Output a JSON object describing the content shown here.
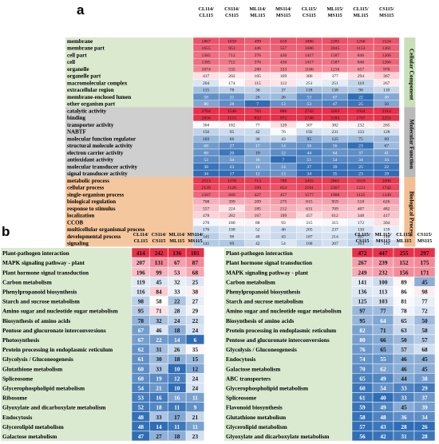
{
  "chart_data": [
    {
      "panel": "a",
      "type": "heatmap",
      "columns": [
        "CL114/ CL115",
        "CS114/ CS115",
        "ML114/ ML115",
        "MS114/ MS115",
        "CL115/ CS115",
        "ML115/ MS115",
        "CL115/ ML115",
        "CS115/ MS115"
      ],
      "groups": [
        {
          "name": "Cellular Component",
          "rows": [
            {
              "label": "membrane",
              "values": [
                1867,
                1059,
                499,
                618,
                1886,
                2285,
                1266,
                1524
              ]
            },
            {
              "label": "membrane part",
              "values": [
                1655,
                953,
                446,
                557,
                1686,
                2045,
                1153,
                1361
              ]
            },
            {
              "label": "cell part",
              "values": [
                1385,
                712,
                376,
                430,
                1417,
                1587,
                846,
                1266
              ]
            },
            {
              "label": "cell",
              "values": [
                1385,
                712,
                376,
                430,
                1417,
                1587,
                846,
                1266
              ]
            },
            {
              "label": "organelle",
              "values": [
                1074,
                535,
                280,
                333,
                1106,
                1216,
                657,
                970
              ]
            },
            {
              "label": "organelle part",
              "values": [
                417,
                202,
                105,
                109,
                386,
                377,
                294,
                367
              ]
            },
            {
              "label": "macromolecular complex",
              "values": [
                204,
                174,
                115,
                112,
                251,
                251,
                110,
                267
              ]
            },
            {
              "label": "extracellular region",
              "values": [
                115,
                78,
                36,
                37,
                118,
                138,
                90,
                110
              ]
            },
            {
              "label": "membrane-enclosed lumen",
              "values": [
                58,
                31,
                26,
                26,
                53,
                67,
                22,
                49
              ]
            },
            {
              "label": "other organism part",
              "values": [
                80,
                28,
                7,
                13,
                53,
                47,
                25,
                50
              ]
            }
          ]
        },
        {
          "name": "Molecular Function",
          "rows": [
            {
              "label": "catalytic activity",
              "values": [
                2704,
                1540,
                763,
                886,
                2742,
                3263,
                1924,
                2314
              ]
            },
            {
              "label": "binding",
              "values": [
                2656,
                1515,
                832,
                972,
                2748,
                3183,
                1787,
                2255
              ]
            },
            {
              "label": "transporter activity",
              "values": [
                304,
                182,
                77,
                120,
                307,
                382,
                232,
                265
              ]
            },
            {
              "label": "NABTF",
              "values": [
                156,
                95,
                42,
                76,
                192,
                231,
                133,
                128
              ]
            },
            {
              "label": "molecular function regulator",
              "values": [
                103,
                66,
                36,
                43,
                95,
                125,
                75,
                69
              ]
            },
            {
              "label": "structural molecule activity",
              "values": [
                68,
                27,
                17,
                14,
                56,
                56,
                23,
                67
              ]
            },
            {
              "label": "electron carrier activity",
              "values": [
                60,
                20,
                19,
                12,
                44,
                64,
                37,
                41
              ]
            },
            {
              "label": "antioxidant activity",
              "values": [
                53,
                34,
                18,
                7,
                51,
                54,
                34,
                34
              ]
            },
            {
              "label": "molecular transducer activity",
              "values": [
                38,
                23,
                16,
                14,
                37,
                39,
                25,
                22
              ]
            },
            {
              "label": "signal transducer activity",
              "values": [
                34,
                17,
                12,
                13,
                34,
                35,
                23,
                19
              ]
            }
          ]
        },
        {
          "name": "Biological Process",
          "rows": [
            {
              "label": "metabolic process",
              "values": [
                2513,
                1378,
                713,
                789,
                2455,
                2861,
                1619,
                2090
              ]
            },
            {
              "label": "cellular process",
              "values": [
                2139,
                1126,
                599,
                654,
                2101,
                2367,
                1221,
                1742
              ]
            },
            {
              "label": "single-organism process",
              "values": [
                1507,
                840,
                427,
                457,
                1577,
                1908,
                1125,
                1349
              ]
            },
            {
              "label": "biological regulation",
              "values": [
                708,
                399,
                209,
                275,
                815,
                959,
                518,
                626
              ]
            },
            {
              "label": "response to stimulus",
              "values": [
                557,
                224,
                185,
                212,
                631,
                709,
                407,
                482
              ]
            },
            {
              "label": "localization",
              "values": [
                478,
                282,
                167,
                199,
                457,
                612,
                348,
                417
              ]
            },
            {
              "label": "CCOB",
              "values": [
                270,
                180,
                88,
                93,
                315,
                315,
                172,
                304
              ]
            },
            {
              "label": "multicellular organismal process",
              "values": [
                176,
                108,
                52,
                46,
                205,
                237,
                130,
                159
              ]
            },
            {
              "label": "developmental process",
              "values": [
                145,
                98,
                48,
                43,
                187,
                214,
                107,
                146
              ]
            },
            {
              "label": "signaling",
              "values": [
                141,
                69,
                42,
                54,
                168,
                207,
                103,
                119
              ]
            }
          ]
        }
      ]
    },
    {
      "panel": "b",
      "type": "heatmap",
      "columns": [
        "CL114/ CL115",
        "CS114/ CS115",
        "ML114/ ML115",
        "MS114/ MS115"
      ],
      "rows": [
        {
          "label": "Plant-pathogen interaction",
          "values": [
            414,
            242,
            136,
            181
          ]
        },
        {
          "label": "MAPK signaling pathway - plant",
          "values": [
            207,
            131,
            67,
            87
          ]
        },
        {
          "label": "Plant hormone signal transduction",
          "values": [
            196,
            99,
            53,
            68
          ]
        },
        {
          "label": "Carbon metabolism",
          "values": [
            119,
            45,
            32,
            25
          ]
        },
        {
          "label": "Phenylpropanoid biosynthesis",
          "values": [
            116,
            84,
            33,
            38
          ]
        },
        {
          "label": "Starch and sucrose metabolism",
          "values": [
            98,
            58,
            22,
            27
          ]
        },
        {
          "label": "Amino sugar and nucleotide sugar metabolism",
          "values": [
            95,
            71,
            28,
            29
          ]
        },
        {
          "label": "Biosynthesis of amino acids",
          "values": [
            78,
            32,
            24,
            22
          ]
        },
        {
          "label": "Pentose and glucuronate interconversions",
          "values": [
            67,
            46,
            18,
            24
          ]
        },
        {
          "label": "Photosynthesis",
          "values": [
            67,
            22,
            14,
            6
          ]
        },
        {
          "label": "Protein processing in endoplasmic reticulum",
          "values": [
            62,
            31,
            26,
            35
          ]
        },
        {
          "label": "Glycolysis / Gluconeogenesis",
          "values": [
            61,
            30,
            18,
            15
          ]
        },
        {
          "label": "Glutathione metabolism",
          "values": [
            60,
            33,
            10,
            12
          ]
        },
        {
          "label": "Spliceosome",
          "values": [
            60,
            19,
            12,
            24
          ]
        },
        {
          "label": "Glycerophospholipid metabolism",
          "values": [
            54,
            21,
            10,
            24
          ]
        },
        {
          "label": "Ribosome",
          "values": [
            53,
            16,
            16,
            11
          ]
        },
        {
          "label": "Glyoxylate and dicarboxylate metabolism",
          "values": [
            52,
            18,
            11,
            9
          ]
        },
        {
          "label": "Endocytosis",
          "values": [
            48,
            33,
            17,
            21
          ]
        },
        {
          "label": "Glycerolipid metabolism",
          "values": [
            48,
            14,
            11,
            11
          ]
        },
        {
          "label": "Galactose metabolism",
          "values": [
            47,
            27,
            18,
            23
          ]
        }
      ]
    },
    {
      "panel": "b",
      "type": "heatmap",
      "columns": [
        "CL115/ CS115",
        "ML115/ MS115",
        "CL115/ ML115",
        "CS115/ MS115"
      ],
      "rows": [
        {
          "label": "Plant-pathogen interaction",
          "values": [
            472,
            447,
            255,
            297
          ]
        },
        {
          "label": "Plant hormone signal transduction",
          "values": [
            267,
            239,
            152,
            175
          ]
        },
        {
          "label": "MAPK signaling pathway - plant",
          "values": [
            249,
            232,
            156,
            171
          ]
        },
        {
          "label": "Carbon metabolism",
          "values": [
            141,
            100,
            89,
            45
          ]
        },
        {
          "label": "Phenylpropanoid biosynthesis",
          "values": [
            136,
            113,
            86,
            98
          ]
        },
        {
          "label": "Starch and sucrose metabolism",
          "values": [
            125,
            103,
            81,
            77
          ]
        },
        {
          "label": "Amino sugar and nucleotide sugar metabolism",
          "values": [
            97,
            77,
            78,
            72
          ]
        },
        {
          "label": "Biosynthesis of amino acids",
          "values": [
            95,
            64,
            65,
            50
          ]
        },
        {
          "label": "Protein processing in endoplasmic reticulum",
          "values": [
            82,
            71,
            63,
            58
          ]
        },
        {
          "label": "Pentose and glucuronate interconversions",
          "values": [
            80,
            66,
            50,
            57
          ]
        },
        {
          "label": "Glycolysis / Gluconeogenesis",
          "values": [
            76,
            65,
            57,
            68
          ]
        },
        {
          "label": "Endocytosis",
          "values": [
            74,
            55,
            46,
            45
          ]
        },
        {
          "label": "Galactose metabolism",
          "values": [
            70,
            62,
            46,
            45
          ]
        },
        {
          "label": "ABC transporters",
          "values": [
            65,
            49,
            44,
            38
          ]
        },
        {
          "label": "Glycerophospholipid metabolism",
          "values": [
            60,
            54,
            33,
            29
          ]
        },
        {
          "label": "Spliceosome",
          "values": [
            61,
            40,
            33,
            37
          ]
        },
        {
          "label": "Flavonoid biosynthesis",
          "values": [
            59,
            49,
            45,
            39
          ]
        },
        {
          "label": "Glutathione metabolism",
          "values": [
            58,
            48,
            36,
            34
          ]
        },
        {
          "label": "Glycerolipid metabolism",
          "values": [
            57,
            43,
            28,
            26
          ]
        },
        {
          "label": "Glyoxylate and dicarboxylate metabolism",
          "values": [
            56,
            42,
            31,
            28
          ]
        }
      ]
    }
  ],
  "panel_letters": {
    "a": "a",
    "b": "b"
  },
  "colors": {
    "low": "#2f6db5",
    "mid": "#ffffff",
    "high": "#e8304a",
    "label_bg_cellular": "#dbe9cf",
    "label_bg_molecular": "#cfcfcf",
    "label_bg_biological": "#f5c79e",
    "strip_cellular": "#c8e0b8",
    "strip_molecular": "#b9b9b9",
    "strip_biological": "#f2bf93",
    "label_bg_b": "#d9ead0"
  }
}
